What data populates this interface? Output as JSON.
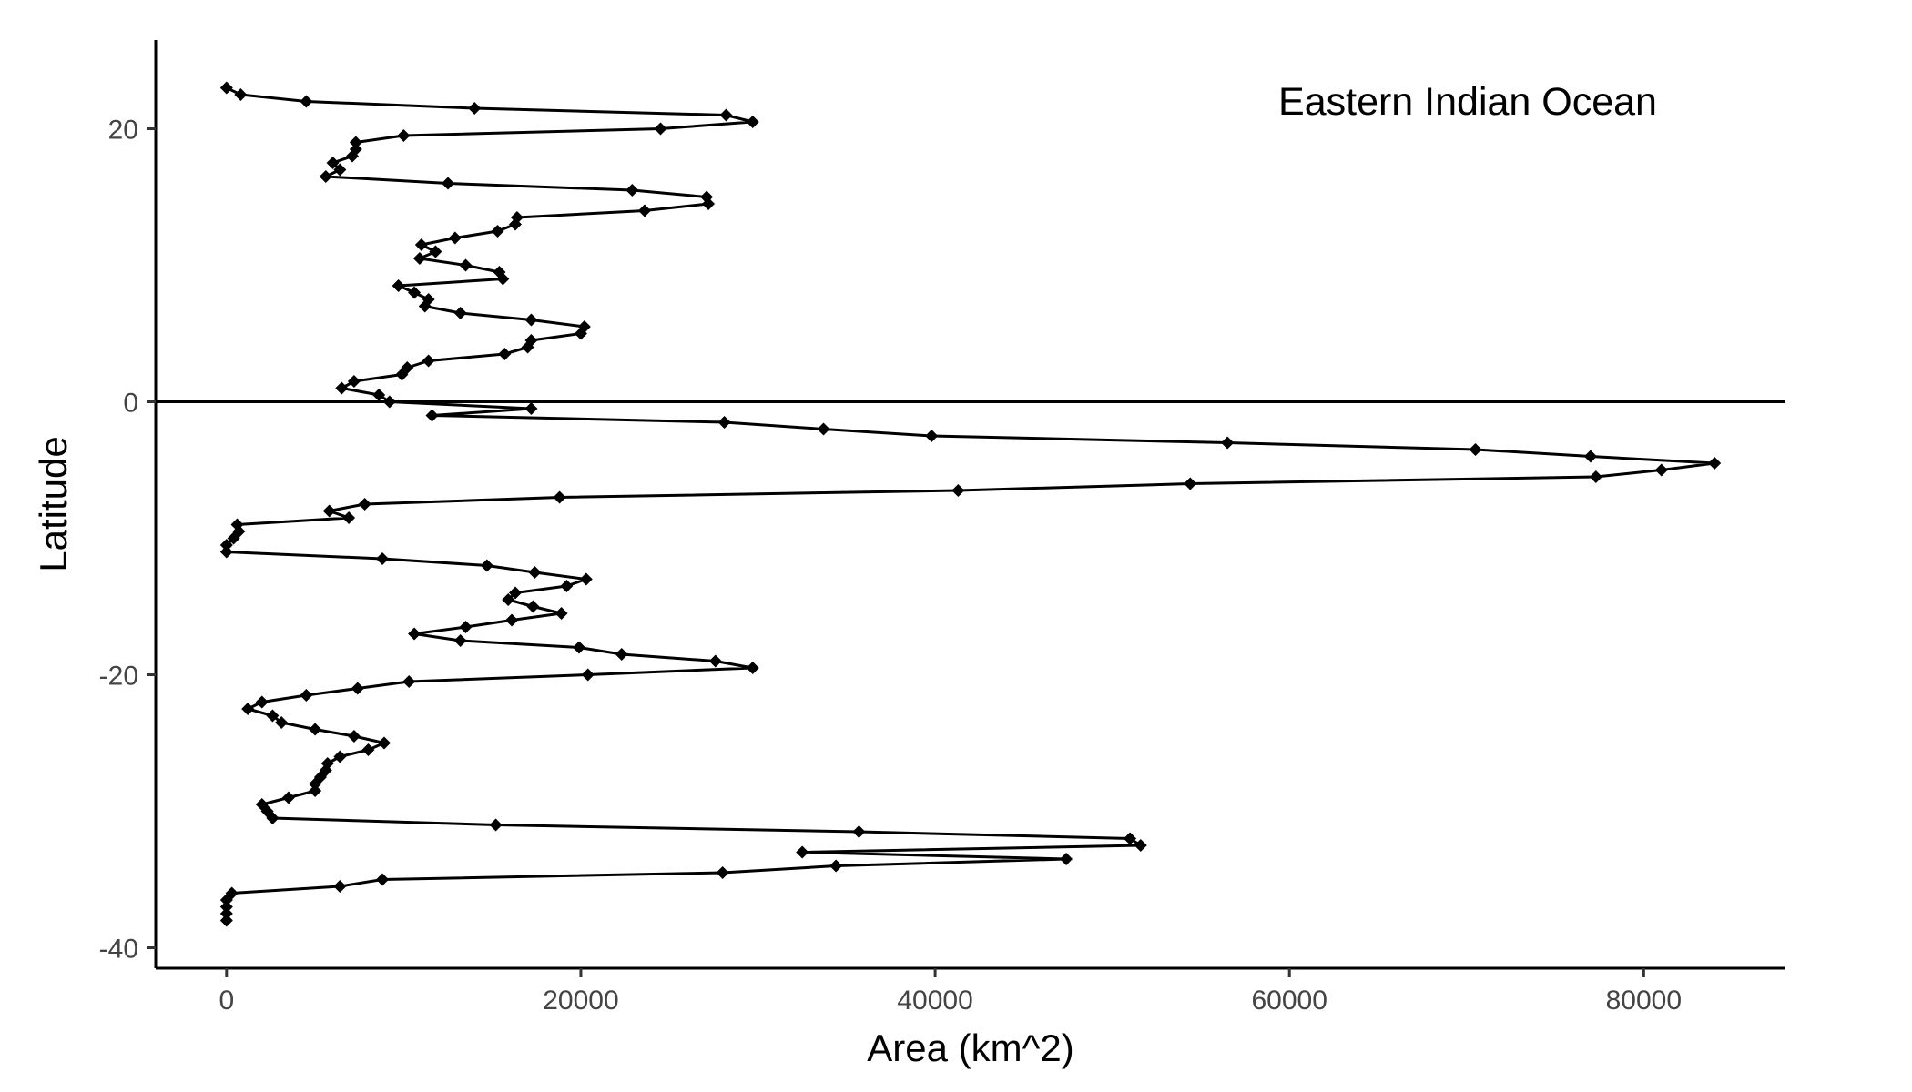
{
  "chart_data": {
    "type": "line",
    "annotation": "Eastern Indian Ocean",
    "xlabel": "Area (km^2)",
    "ylabel": "Latitude",
    "xlim": [
      -4000,
      88000
    ],
    "ylim": [
      -41.5,
      26.5
    ],
    "xticks": [
      0,
      20000,
      40000,
      60000,
      80000
    ],
    "yticks": [
      -40,
      -20,
      0,
      20
    ],
    "grid": false,
    "reference_line_y": 0,
    "line_color": "#000000",
    "series": [
      {
        "x": [
          0,
          800,
          4500,
          14000,
          28200,
          29700,
          24500,
          10000,
          7300,
          7300,
          7100,
          6000,
          6400,
          5600,
          12500,
          22900,
          27100,
          27200,
          23600,
          16400,
          16300,
          15300,
          12900,
          11000,
          11800,
          10900,
          13500,
          15400,
          15600,
          9700,
          10600,
          11400,
          11200,
          13200,
          17200,
          20200,
          20000,
          17200,
          17000,
          15700,
          11400,
          10200,
          9900,
          7200,
          6500,
          8600,
          9200,
          17200,
          11600,
          28100,
          33700,
          39800,
          56500,
          70500,
          77000,
          84000,
          81000,
          77300,
          54400,
          41300,
          18800,
          7800,
          5800,
          6900,
          600,
          700,
          400,
          0,
          0,
          8800,
          14700,
          17400,
          20300,
          19200,
          16300,
          15900,
          17300,
          18900,
          16100,
          13500,
          10600,
          13200,
          19900,
          22300,
          27600,
          29700,
          20400,
          10300,
          7400,
          4500,
          2000,
          1200,
          2600,
          3100,
          5000,
          7200,
          8900,
          8000,
          6400,
          5700,
          5600,
          5300,
          5000,
          5000,
          3500,
          2000,
          2300,
          2600,
          15200,
          35700,
          51000,
          51600,
          32500,
          47400,
          34400,
          28000,
          8800,
          6400,
          300,
          0,
          0,
          0,
          0
        ],
        "y": [
          23,
          22.5,
          22,
          21.5,
          21,
          20.5,
          20,
          19.5,
          19,
          18.5,
          18,
          17.5,
          17,
          16.5,
          16,
          15.5,
          15,
          14.5,
          14,
          13.5,
          13,
          12.5,
          12,
          11.5,
          11,
          10.5,
          10,
          9.5,
          9,
          8.5,
          8,
          7.5,
          7,
          6.5,
          6,
          5.5,
          5,
          4.5,
          4,
          3.5,
          3,
          2.5,
          2,
          1.5,
          1,
          0.5,
          0,
          -0.5,
          -1,
          -1.5,
          -2,
          -2.5,
          -3,
          -3.5,
          -4,
          -4.5,
          -5,
          -5.5,
          -6,
          -6.5,
          -7,
          -7.5,
          -8,
          -8.5,
          -9,
          -9.5,
          -10,
          -10.5,
          -11,
          -11.5,
          -12,
          -12.5,
          -13,
          -13.5,
          -14,
          -14.5,
          -15,
          -15.5,
          -16,
          -16.5,
          -17,
          -17.5,
          -18,
          -18.5,
          -19,
          -19.5,
          -20,
          -20.5,
          -21,
          -21.5,
          -22,
          -22.5,
          -23,
          -23.5,
          -24,
          -24.5,
          -25,
          -25.5,
          -26,
          -26.5,
          -27,
          -27.5,
          -28,
          -28.5,
          -29,
          -29.5,
          -30,
          -30.5,
          -31,
          -31.5,
          -32,
          -32.5,
          -33,
          -33.5,
          -34,
          -34.5,
          -35,
          -35.5,
          -36,
          -36.5,
          -37,
          -37.5,
          -38
        ]
      }
    ]
  }
}
